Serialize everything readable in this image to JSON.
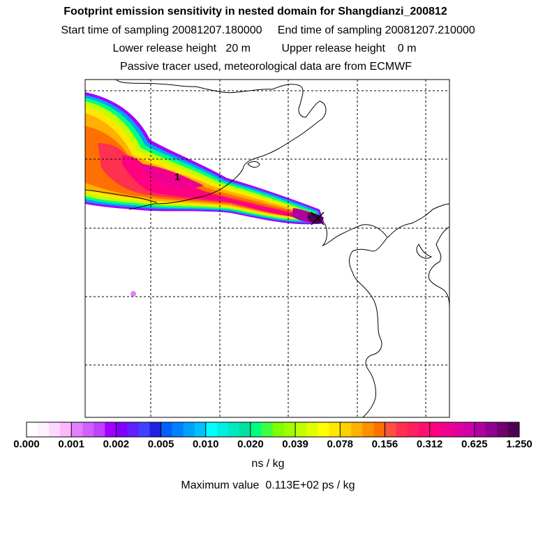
{
  "header": {
    "title": "Footprint emission sensitivity in nested domain for Shangdianzi_200812",
    "sampling_line": "Start time of sampling 20081207.180000     End time of sampling 20081207.210000",
    "height_line": "Lower release height   20 m          Upper release height    0 m",
    "info_line": "Passive tracer used, meteorological data are from ECMWF"
  },
  "map": {
    "max_marker_label": "1",
    "receptor_marker": "x-cross-icon"
  },
  "colorbar": {
    "tick_labels": [
      "0.000",
      "0.001",
      "0.002",
      "0.005",
      "0.010",
      "0.020",
      "0.039",
      "0.078",
      "0.156",
      "0.312",
      "0.625",
      "1.250"
    ],
    "colors": [
      "#ffffff",
      "#fff0ff",
      "#ffd8ff",
      "#ffb8ff",
      "#e080ff",
      "#d060ff",
      "#c040ff",
      "#a000ff",
      "#8000ff",
      "#6020ff",
      "#4040ff",
      "#2020e0",
      "#0060ff",
      "#0080ff",
      "#00a0ff",
      "#00c0ff",
      "#00ffff",
      "#00f0e0",
      "#00e8c0",
      "#00e0a0",
      "#00ff80",
      "#40ff40",
      "#80ff00",
      "#a0ff00",
      "#c0ff00",
      "#e0ff00",
      "#ffff00",
      "#ffe800",
      "#ffd000",
      "#ffb000",
      "#ff9000",
      "#ff7000",
      "#ff5040",
      "#ff3050",
      "#ff2060",
      "#ff1070",
      "#ff0080",
      "#f00090",
      "#e000a0",
      "#d000a8",
      "#b000a0",
      "#900090",
      "#700070",
      "#500050"
    ],
    "units": "ns / kg"
  },
  "footer": {
    "max_value": "Maximum value  0.113E+02 ps / kg"
  }
}
